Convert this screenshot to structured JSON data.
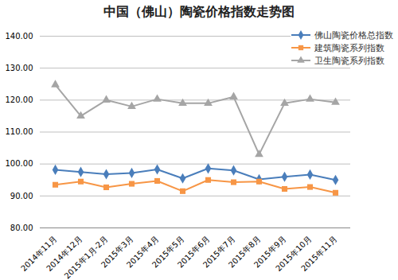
{
  "chart_data": {
    "type": "line",
    "title": "中国（佛山）陶瓷价格指数走势图",
    "categories": [
      "2014年11月",
      "2014年12月",
      "2015年1月-2月",
      "2015年3月",
      "2015年4月",
      "2015年5月",
      "2015年6月",
      "2015年7月",
      "2015年8月",
      "2015年9月",
      "2015年10月",
      "2015年11月"
    ],
    "series": [
      {
        "name": "佛山陶瓷价格总指数",
        "color": "#4a7ebb",
        "marker": "diamond",
        "values": [
          98.2,
          97.5,
          96.8,
          97.2,
          98.3,
          95.5,
          98.6,
          98.0,
          95.2,
          96.0,
          96.7,
          95.0
        ]
      },
      {
        "name": "建筑陶瓷系列指数",
        "color": "#f79646",
        "marker": "square",
        "values": [
          93.5,
          94.5,
          92.7,
          93.8,
          94.7,
          91.5,
          95.0,
          94.3,
          94.5,
          92.2,
          92.8,
          91.0
        ]
      },
      {
        "name": "卫生陶瓷系列指数",
        "color": "#a5a5a5",
        "marker": "triangle",
        "values": [
          124.8,
          115.0,
          120.0,
          118.0,
          120.3,
          119.0,
          119.0,
          121.0,
          103.0,
          119.0,
          120.3,
          119.3
        ]
      }
    ],
    "ylim": [
      80,
      140
    ],
    "yticks": [
      {
        "value": 80,
        "label": "80.00"
      },
      {
        "value": 90,
        "label": "90.00"
      },
      {
        "value": 100,
        "label": "100.00"
      },
      {
        "value": 110,
        "label": "110.00"
      },
      {
        "value": 120,
        "label": "120.00"
      },
      {
        "value": 130,
        "label": "130.00"
      },
      {
        "value": 140,
        "label": "140.00"
      }
    ],
    "grid": true,
    "legend": "top-right"
  }
}
